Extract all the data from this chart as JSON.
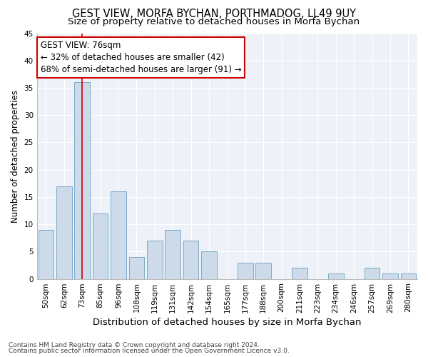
{
  "title1": "GEST VIEW, MORFA BYCHAN, PORTHMADOG, LL49 9UY",
  "title2": "Size of property relative to detached houses in Morfa Bychan",
  "xlabel": "Distribution of detached houses by size in Morfa Bychan",
  "ylabel": "Number of detached properties",
  "categories": [
    "50sqm",
    "62sqm",
    "73sqm",
    "85sqm",
    "96sqm",
    "108sqm",
    "119sqm",
    "131sqm",
    "142sqm",
    "154sqm",
    "165sqm",
    "177sqm",
    "188sqm",
    "200sqm",
    "211sqm",
    "223sqm",
    "234sqm",
    "246sqm",
    "257sqm",
    "269sqm",
    "280sqm"
  ],
  "values": [
    9,
    17,
    36,
    12,
    16,
    4,
    7,
    9,
    7,
    5,
    0,
    3,
    3,
    0,
    2,
    0,
    1,
    0,
    2,
    1,
    1
  ],
  "bar_color": "#ccdaea",
  "bar_edge_color": "#7aaac8",
  "highlight_bar_index": 2,
  "highlight_line_color": "#cc0000",
  "annotation_line1": "GEST VIEW: 76sqm",
  "annotation_line2": "← 32% of detached houses are smaller (42)",
  "annotation_line3": "68% of semi-detached houses are larger (91) →",
  "annotation_box_color": "#ffffff",
  "annotation_box_edge_color": "#cc0000",
  "ylim": [
    0,
    45
  ],
  "yticks": [
    0,
    5,
    10,
    15,
    20,
    25,
    30,
    35,
    40,
    45
  ],
  "footnote1": "Contains HM Land Registry data © Crown copyright and database right 2024.",
  "footnote2": "Contains public sector information licensed under the Open Government Licence v3.0.",
  "bg_color": "#eef2f8",
  "grid_color": "#ffffff",
  "title1_fontsize": 10.5,
  "title2_fontsize": 9.5,
  "xlabel_fontsize": 9.5,
  "ylabel_fontsize": 8.5,
  "tick_fontsize": 7.5,
  "annotation_fontsize": 8.5,
  "footnote_fontsize": 6.5
}
